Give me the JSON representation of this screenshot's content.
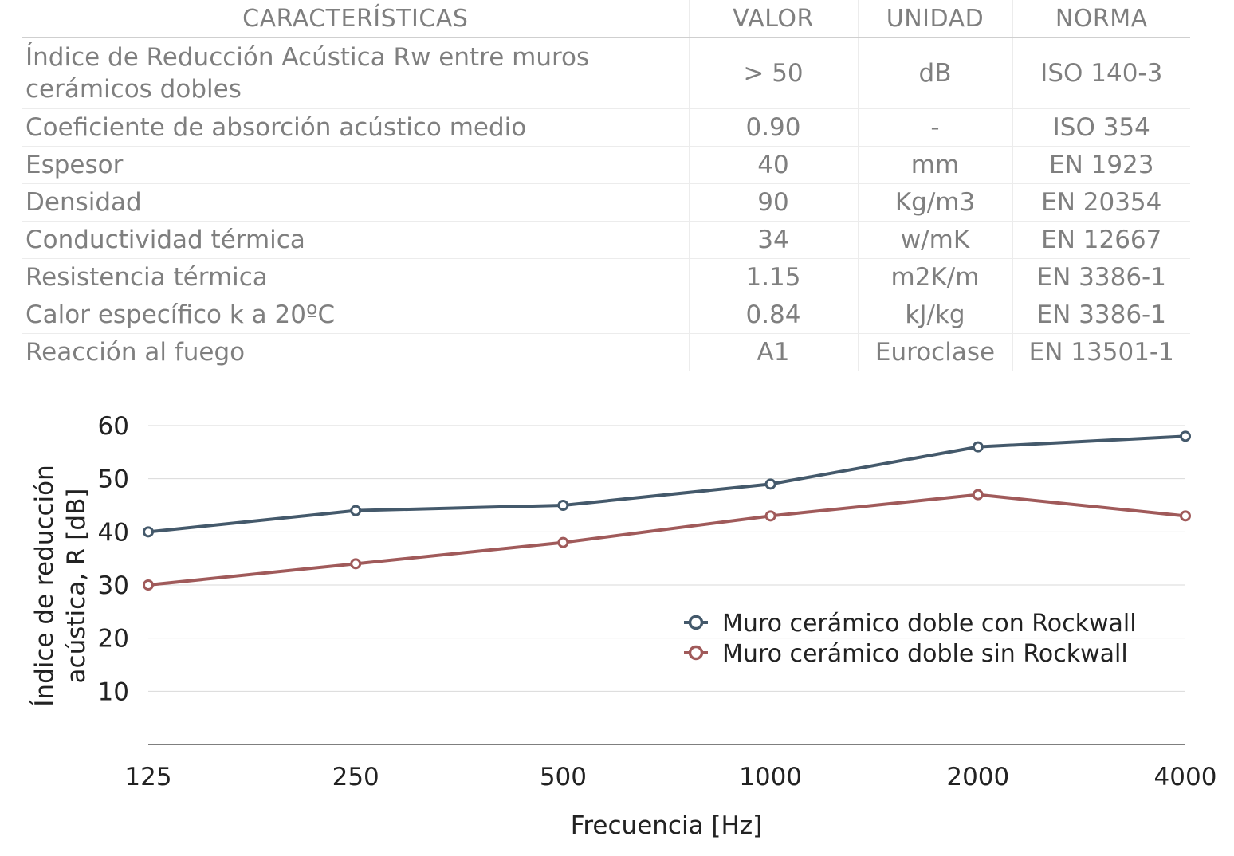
{
  "table": {
    "headers": [
      "CARACTERÍSTICAS",
      "VALOR",
      "UNIDAD",
      "NORMA"
    ],
    "rows": [
      [
        "Índice de Reducción Acústica Rw entre muros cerámicos dobles",
        "> 50",
        "dB",
        "ISO 140-3"
      ],
      [
        "Coeficiente de absorción acústico medio",
        "0.90",
        "-",
        "ISO 354"
      ],
      [
        "Espesor",
        "40",
        "mm",
        "EN 1923"
      ],
      [
        "Densidad",
        "90",
        "Kg/m3",
        "EN 20354"
      ],
      [
        "Conductividad térmica",
        "34",
        "w/mK",
        "EN 12667"
      ],
      [
        "Resistencia térmica",
        "1.15",
        "m2K/m",
        "EN 3386-1"
      ],
      [
        "Calor específico k a 20ºC",
        "0.84",
        "kJ/kg",
        "EN 3386-1"
      ],
      [
        "Reacción al fuego",
        "A1",
        "Euroclase",
        "EN 13501-1"
      ]
    ]
  },
  "chart_data": {
    "type": "line",
    "categories": [
      "125",
      "250",
      "500",
      "1000",
      "2000",
      "4000"
    ],
    "series": [
      {
        "name": "Muro cerámico doble con Rockwall",
        "values": [
          40,
          44,
          45,
          49,
          56,
          58
        ],
        "color": "#44596b"
      },
      {
        "name": "Muro cerámico doble sin Rockwall",
        "values": [
          30,
          34,
          38,
          43,
          47,
          43
        ],
        "color": "#a05a5a"
      }
    ],
    "xlabel": "Frecuencia [Hz]",
    "ylabel": "Índice de reducción acústica, R [dB]",
    "ylim": [
      0,
      60
    ],
    "yticks": [
      10,
      20,
      30,
      40,
      50,
      60
    ],
    "grid": true,
    "legend": "center-right"
  }
}
